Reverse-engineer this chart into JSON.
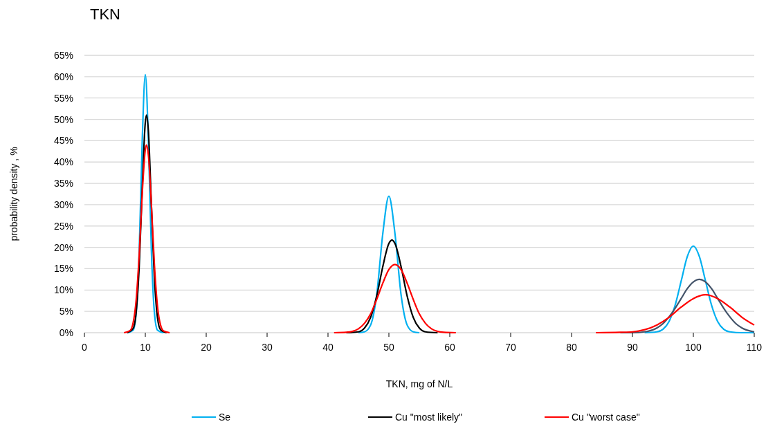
{
  "chart_data": {
    "type": "line",
    "title": "TKN",
    "xlabel": "TKN, mg of N/L",
    "ylabel": "probability density , %",
    "xlim": [
      0,
      110
    ],
    "xticks": [
      0,
      10,
      20,
      30,
      40,
      50,
      60,
      70,
      80,
      90,
      100,
      110
    ],
    "ylim": [
      0,
      65
    ],
    "yticks": [
      {
        "value": 0,
        "label": "0%"
      },
      {
        "value": 5,
        "label": "5%"
      },
      {
        "value": 10,
        "label": "10%"
      },
      {
        "value": 15,
        "label": "15%"
      },
      {
        "value": 20,
        "label": "20%"
      },
      {
        "value": 25,
        "label": "25%"
      },
      {
        "value": 30,
        "label": "30%"
      },
      {
        "value": 35,
        "label": "35%"
      },
      {
        "value": 40,
        "label": "40%"
      },
      {
        "value": 45,
        "label": "45%"
      },
      {
        "value": 50,
        "label": "50%"
      },
      {
        "value": 55,
        "label": "55%"
      },
      {
        "value": 60,
        "label": "60%"
      },
      {
        "value": 65,
        "label": "65%"
      }
    ],
    "grid": "y",
    "legend": "bottom",
    "line_style": "solid",
    "series": [
      {
        "name": "Se",
        "color": "#00b0f0",
        "x": [
          7,
          8,
          8.5,
          9,
          9.5,
          10,
          10.5,
          11,
          11.5,
          12,
          13,
          30,
          45,
          46,
          47,
          48,
          49,
          50,
          51,
          52,
          53,
          54,
          55,
          75,
          92,
          94,
          95,
          96,
          97,
          98,
          99,
          100,
          101,
          102,
          103,
          104,
          105,
          106,
          108,
          110
        ],
        "values": [
          0,
          0.6,
          4.6,
          19.1,
          45.3,
          60.5,
          45.3,
          19.1,
          4.6,
          0.6,
          0,
          null,
          0,
          0.2,
          1.8,
          8.9,
          23.2,
          32,
          23.2,
          8.9,
          1.8,
          0.2,
          0,
          null,
          0,
          0.2,
          0.8,
          2.6,
          6.4,
          12.1,
          17.8,
          20.3,
          17.8,
          12.1,
          6.4,
          2.6,
          0.8,
          0.2,
          0,
          0
        ]
      },
      {
        "name": "Cu \"most likely\"",
        "color": "#000000",
        "x": [
          7,
          8,
          8.5,
          9,
          9.5,
          10,
          10.2,
          10.5,
          11,
          11.5,
          12,
          12.5,
          13.5,
          30,
          43,
          45,
          46,
          47,
          48,
          49,
          50,
          50.5,
          51,
          52,
          53,
          54,
          55,
          56,
          58
        ],
        "values": [
          0,
          1.0,
          4.8,
          15.6,
          34.0,
          49.3,
          51,
          47.4,
          30.0,
          12.7,
          3.5,
          0.7,
          0,
          null,
          0,
          0.2,
          1.1,
          3.6,
          8.6,
          15.5,
          20.9,
          21.7,
          20.9,
          15.5,
          8.6,
          3.6,
          1.1,
          0.2,
          0
        ]
      },
      {
        "color": "#44546a",
        "x": [
          88,
          90,
          92,
          94,
          95,
          96,
          97,
          98,
          99,
          100,
          101,
          102,
          103,
          104,
          105,
          106,
          107,
          108,
          110
        ],
        "values": [
          0,
          0,
          0.2,
          1.1,
          2.1,
          3.7,
          5.7,
          8.0,
          10.3,
          11.9,
          12.5,
          11.9,
          10.3,
          8.0,
          5.7,
          3.7,
          2.1,
          1.1,
          0.2
        ]
      },
      {
        "name": "Cu \"worst case\"",
        "color": "#ff0000",
        "x": [
          6.5,
          7.5,
          8,
          8.5,
          9,
          9.5,
          10,
          10.2,
          10.5,
          11,
          11.5,
          12,
          12.5,
          13,
          14,
          30,
          41,
          43,
          44,
          45,
          46,
          47,
          48,
          49,
          50,
          51,
          52,
          53,
          54,
          55,
          56,
          57,
          58,
          59,
          61,
          75,
          84,
          88,
          90,
          92,
          94,
          96,
          98,
          100,
          102,
          104,
          106,
          108,
          110
        ],
        "values": [
          0,
          0.5,
          2.3,
          7.7,
          18.4,
          32.7,
          42.9,
          44,
          41.7,
          29.9,
          15.8,
          6.2,
          1.8,
          0.4,
          0,
          null,
          0,
          0.1,
          0.3,
          0.9,
          2.2,
          4.4,
          7.8,
          11.6,
          14.8,
          16,
          14.8,
          11.6,
          7.8,
          4.4,
          2.2,
          0.9,
          0.3,
          0.1,
          0,
          null,
          0,
          0.1,
          0.2,
          0.7,
          1.8,
          3.6,
          6.0,
          8.0,
          8.9,
          8.0,
          6.0,
          3.6,
          1.8
        ]
      }
    ]
  }
}
